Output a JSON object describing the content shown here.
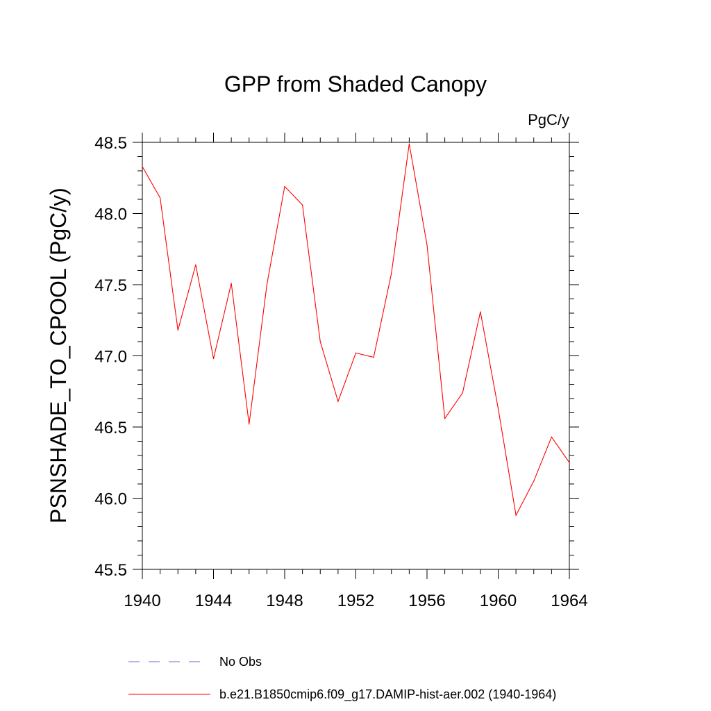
{
  "chart_data": {
    "type": "line",
    "title": "GPP from Shaded Canopy",
    "units_label": "PgC/y",
    "ylabel": "PSNSHADE_TO_CPOOL  (PgC/y)",
    "xlabel": "",
    "xlim": [
      1940,
      1964
    ],
    "ylim": [
      45.5,
      48.5
    ],
    "x_ticks": [
      1940,
      1944,
      1948,
      1952,
      1956,
      1960,
      1964
    ],
    "y_ticks": [
      "45.5",
      "46.0",
      "46.5",
      "47.0",
      "47.5",
      "48.0",
      "48.5"
    ],
    "grid": false,
    "series": [
      {
        "name": "b.e21.B1850cmip6.f09_g17.DAMIP-hist-aer.002 (1940-1964)",
        "color": "#ff0000",
        "x": [
          1940,
          1941,
          1942,
          1943,
          1944,
          1945,
          1946,
          1947,
          1948,
          1949,
          1950,
          1951,
          1952,
          1953,
          1954,
          1955,
          1956,
          1957,
          1958,
          1959,
          1960,
          1961,
          1962,
          1963,
          1964
        ],
        "y": [
          48.33,
          48.11,
          47.18,
          47.64,
          46.98,
          47.51,
          46.52,
          47.5,
          48.19,
          48.06,
          47.1,
          46.68,
          47.02,
          46.99,
          47.58,
          48.49,
          47.78,
          46.56,
          46.74,
          47.31,
          46.63,
          45.88,
          46.12,
          46.43,
          46.25
        ]
      }
    ],
    "legend": [
      {
        "label": "No Obs",
        "color": "#6e6ec8",
        "style": "dashed"
      },
      {
        "label": "b.e21.B1850cmip6.f09_g17.DAMIP-hist-aer.002 (1940-1964)",
        "color": "#ff0000",
        "style": "solid"
      }
    ],
    "legend_position": "bottom"
  }
}
